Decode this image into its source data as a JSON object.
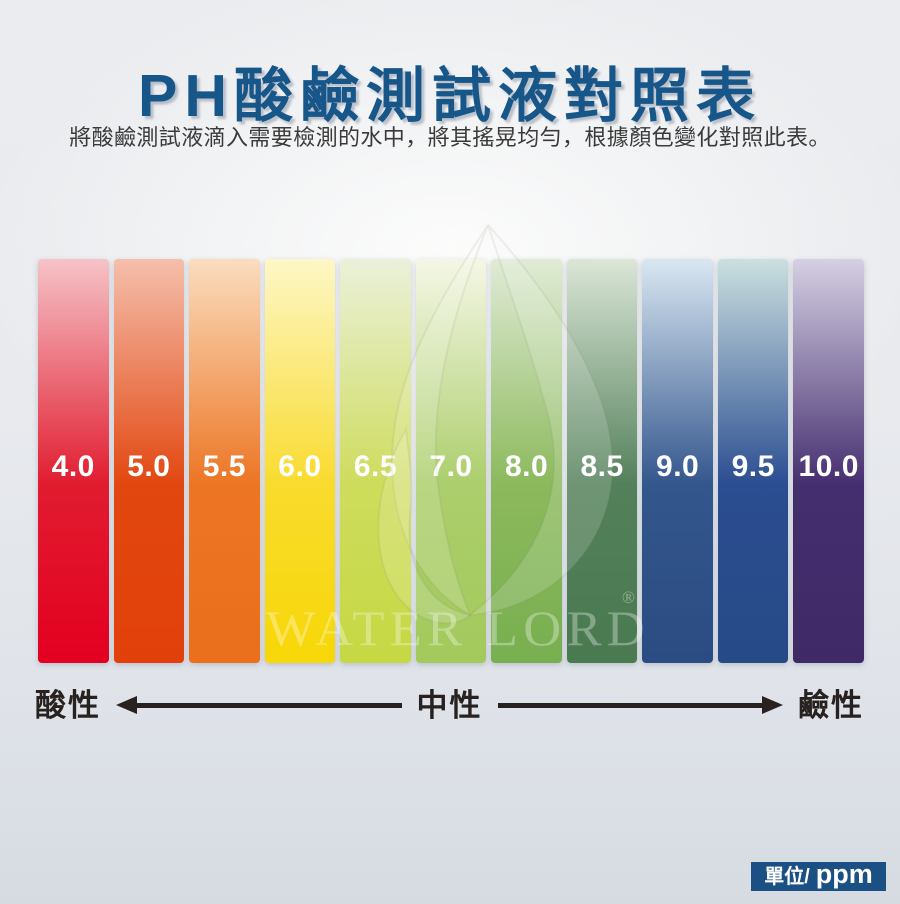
{
  "page": {
    "title": "PH酸鹼測試液對照表",
    "subtitle": "將酸鹼測試液滴入需要檢測的水中，將其搖晃均勻，根據顏色變化對照此表。"
  },
  "chart_data": {
    "type": "bar",
    "title": "PH酸鹼測試液對照表",
    "categories": [
      "4.0",
      "5.0",
      "5.5",
      "6.0",
      "6.5",
      "7.0",
      "8.0",
      "8.5",
      "9.0",
      "9.5",
      "10.0"
    ],
    "values": [
      4.0,
      5.0,
      5.5,
      6.0,
      6.5,
      7.0,
      8.0,
      8.5,
      9.0,
      9.5,
      10.0
    ],
    "unit": "ppm",
    "legend_position": "bottom",
    "axis_labels": {
      "acid": "酸性",
      "neutral": "中性",
      "alkaline": "鹼性"
    },
    "bars": [
      {
        "ph": "4.0",
        "top": "#F6C3C8",
        "main": "#E11C2F",
        "bottom": "#E30020"
      },
      {
        "ph": "5.0",
        "top": "#F5BFAC",
        "main": "#E24710",
        "bottom": "#E2400A"
      },
      {
        "ph": "5.5",
        "top": "#FBDDBE",
        "main": "#EC7524",
        "bottom": "#EB6F1C"
      },
      {
        "ph": "6.0",
        "top": "#FDF7C6",
        "main": "#F9DB2E",
        "bottom": "#F7D707"
      },
      {
        "ph": "6.5",
        "top": "#EBF1DA",
        "main": "#CEDC5C",
        "bottom": "#C6D843"
      },
      {
        "ph": "7.0",
        "top": "#F5F7E6",
        "main": "#ACCE6C",
        "bottom": "#A3C95C"
      },
      {
        "ph": "8.0",
        "top": "#E0EBD6",
        "main": "#8CB95C",
        "bottom": "#78AF50"
      },
      {
        "ph": "8.5",
        "top": "#DBE6D7",
        "main": "#53805A",
        "bottom": "#4A7A50"
      },
      {
        "ph": "9.0",
        "top": "#D9E7F2",
        "main": "#33568D",
        "bottom": "#2A4C82"
      },
      {
        "ph": "9.5",
        "top": "#CBE0E0",
        "main": "#2B4D91",
        "bottom": "#264A86"
      },
      {
        "ph": "10.0",
        "top": "#D5D0E3",
        "main": "#452E6F",
        "bottom": "#3F2A66"
      }
    ]
  },
  "watermark": {
    "text": "WATER LORD",
    "registered": "®"
  },
  "unit_badge": {
    "prefix": "單位/",
    "unit": "ppm"
  },
  "colors": {
    "title_blue": "#175689",
    "badge_blue": "#1A5083",
    "axis_ink": "#272120",
    "bar_label_white": "#FFFFFF"
  }
}
